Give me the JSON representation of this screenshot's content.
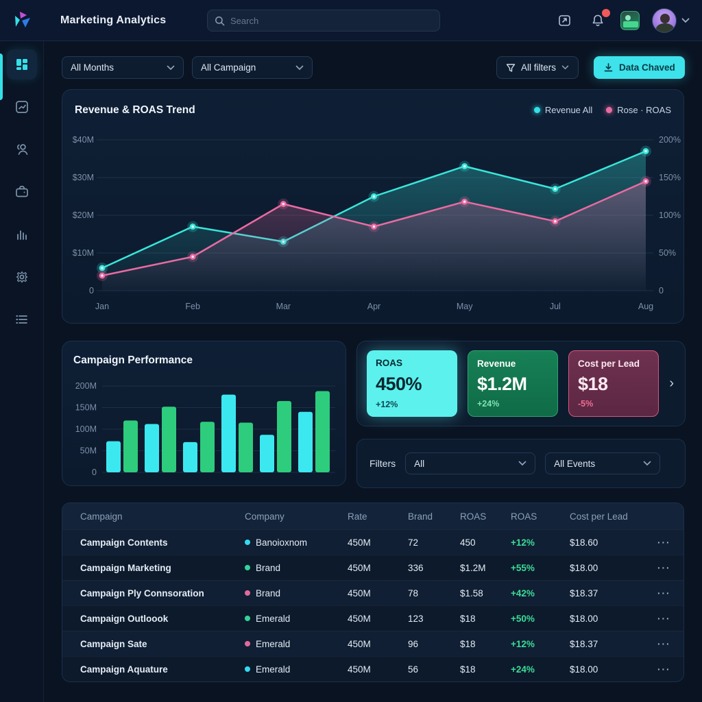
{
  "colors": {
    "accent_cyan": "#35e0e8",
    "line_revenue": "#39e6da",
    "line_roas": "#ea6ba2",
    "bar_cyan": "#3ce8f0",
    "bar_green": "#2ecc7d",
    "delta_green": "#3ddc97",
    "badge_red": "#f05a5a"
  },
  "topbar": {
    "title": "Marketing Analytics",
    "search_placeholder": "Search",
    "icons": [
      "export-icon",
      "bell-icon",
      "app-thumbnail-icon",
      "avatar",
      "chevron-down-icon"
    ]
  },
  "sidebar": {
    "items": [
      {
        "icon": "dashboard-grid-icon",
        "active": true
      },
      {
        "icon": "trend-chart-icon",
        "active": false
      },
      {
        "icon": "users-icon",
        "active": false
      },
      {
        "icon": "campaign-case-icon",
        "active": false
      },
      {
        "icon": "bar-chart-icon",
        "active": false
      },
      {
        "icon": "settings-gear-icon",
        "active": false
      },
      {
        "icon": "list-icon",
        "active": false
      }
    ]
  },
  "filter_bar": {
    "months": "All Months",
    "campaign": "All Campaign",
    "all_filters": "All filters",
    "export_button": "Data Chaved"
  },
  "chart_data": [
    {
      "type": "line",
      "title": "Revenue & ROAS Trend",
      "x": [
        "Jan",
        "Feb",
        "Mar",
        "Apr",
        "May",
        "Jul",
        "Aug"
      ],
      "series": [
        {
          "name": "Revenue All",
          "axis": "left",
          "color": "#39e6da",
          "values": [
            6,
            17,
            13,
            25,
            33,
            27,
            37
          ]
        },
        {
          "name": "Rose · ROAS",
          "axis": "right",
          "color": "#ea6ba2",
          "values": [
            20,
            45,
            115,
            85,
            118,
            92,
            145
          ]
        }
      ],
      "left_axis": {
        "ticks": [
          "$40M",
          "$30M",
          "$20M",
          "$10M",
          "0"
        ],
        "max": 40,
        "unit": "$M"
      },
      "right_axis": {
        "ticks": [
          "200%",
          "150%",
          "100%",
          "50%",
          "0"
        ],
        "max": 200,
        "unit": "%"
      },
      "grid": true,
      "legend_position": "top-right"
    },
    {
      "type": "bar",
      "title": "Campaign Performance",
      "values": [
        72,
        120,
        112,
        152,
        70,
        117,
        180,
        115,
        87,
        165,
        140,
        188
      ],
      "bar_colors_alternate": [
        "#3ce8f0",
        "#2ecc7d"
      ],
      "yticks": [
        "200M",
        "150M",
        "100M",
        "50M",
        "0"
      ],
      "ylim": [
        0,
        200
      ],
      "groups_of": 2
    }
  ],
  "kpis": {
    "cards": [
      {
        "label": "ROAS",
        "value": "450%",
        "delta": "+12%",
        "variant": "cyan"
      },
      {
        "label": "Revenue",
        "value": "$1.2M",
        "delta": "+24%",
        "variant": "green"
      },
      {
        "label": "Cost per Lead",
        "value": "$18",
        "delta": "-5%",
        "variant": "rose"
      }
    ],
    "chevron": "›"
  },
  "filters_panel": {
    "label": "Filters",
    "select_all": "All",
    "select_events": "All Events"
  },
  "table": {
    "columns": [
      "Campaign",
      "Company",
      "Rate",
      "Brand",
      "ROAS",
      "ROAS",
      "Cost per Lead",
      ""
    ],
    "rows": [
      {
        "campaign": "Campaign Contents",
        "dot": "#35d9ee",
        "company": "Banoioxnom",
        "rate": "450M",
        "brand": "72",
        "roas": "450",
        "delta": "+12%",
        "cost": "$18.60",
        "actions": "···"
      },
      {
        "campaign": "Campaign Marketing",
        "dot": "#34d399",
        "company": "Brand",
        "rate": "450M",
        "brand": "336",
        "roas": "$1.2M",
        "delta": "+55%",
        "cost": "$18.00",
        "actions": "···"
      },
      {
        "campaign": "Campaign Ply Connsoration",
        "dot": "#e06a9d",
        "company": "Brand",
        "rate": "450M",
        "brand": "78",
        "roas": "$1.58",
        "delta": "+42%",
        "cost": "$18.37",
        "actions": "···"
      },
      {
        "campaign": "Campaign Outloook",
        "dot": "#34d399",
        "company": "Emerald",
        "rate": "450M",
        "brand": "123",
        "roas": "$18",
        "delta": "+50%",
        "cost": "$18.00",
        "actions": "···"
      },
      {
        "campaign": "Campaign Sate",
        "dot": "#e06a9d",
        "company": "Emerald",
        "rate": "450M",
        "brand": "96",
        "roas": "$18",
        "delta": "+12%",
        "cost": "$18.37",
        "actions": "···"
      },
      {
        "campaign": "Campaign Aquature",
        "dot": "#35d9ee",
        "company": "Emerald",
        "rate": "450M",
        "brand": "56",
        "roas": "$18",
        "delta": "+24%",
        "cost": "$18.00",
        "actions": "···"
      }
    ]
  }
}
